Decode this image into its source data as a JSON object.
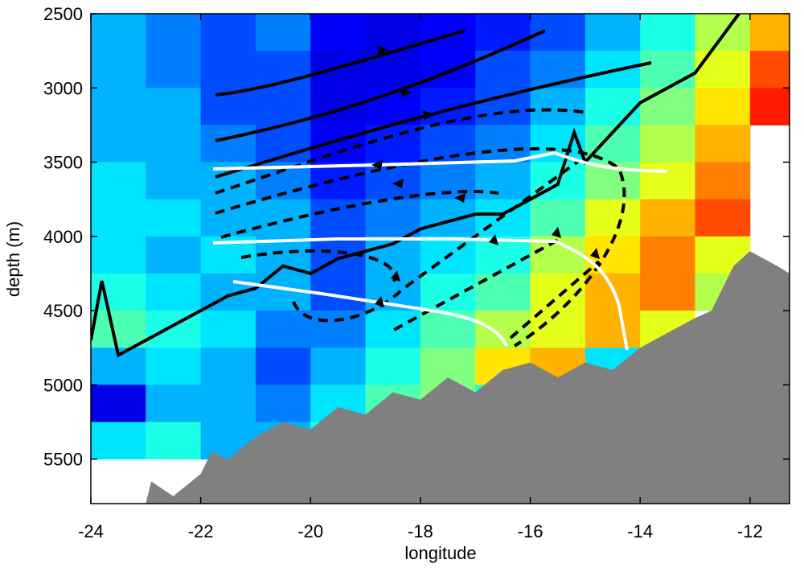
{
  "chart_data": {
    "type": "heatmap",
    "x_label": "longitude",
    "y_label": "depth (m)",
    "xlim": [
      -24,
      -11.28
    ],
    "ylim": [
      2500,
      5800
    ],
    "y_inverted": true,
    "xticks": [
      -24,
      -22,
      -20,
      -18,
      -16,
      -14,
      -12
    ],
    "yticks": [
      2500,
      3000,
      3500,
      4000,
      4500,
      5000,
      5500
    ],
    "colormap": "jet",
    "x_edges": [
      -24,
      -23,
      -22,
      -21,
      -20,
      -19,
      -18,
      -17,
      -16,
      -15,
      -14,
      -13,
      -12,
      -11.28
    ],
    "y_edges": [
      2500,
      2750,
      3000,
      3250,
      3500,
      3750,
      4000,
      4250,
      4500,
      4750,
      5000,
      5250,
      5500,
      5750
    ],
    "z": [
      [
        0.3,
        0.25,
        0.2,
        0.25,
        0.12,
        0.1,
        0.12,
        0.15,
        0.2,
        0.3,
        0.4,
        0.55,
        0.7
      ],
      [
        0.3,
        0.25,
        0.2,
        0.2,
        0.1,
        0.1,
        0.12,
        0.2,
        0.25,
        0.35,
        0.45,
        0.6,
        0.8
      ],
      [
        0.3,
        0.3,
        0.2,
        0.2,
        0.1,
        0.12,
        0.15,
        0.2,
        0.3,
        0.4,
        0.5,
        0.65,
        0.85
      ],
      [
        0.3,
        0.3,
        0.25,
        0.2,
        0.12,
        0.15,
        0.2,
        0.25,
        0.35,
        0.45,
        0.55,
        0.7,
        null
      ],
      [
        0.35,
        0.3,
        0.3,
        0.25,
        0.15,
        0.2,
        0.25,
        0.3,
        0.4,
        0.5,
        0.6,
        0.75,
        null
      ],
      [
        0.35,
        0.35,
        0.3,
        0.3,
        0.2,
        0.25,
        0.3,
        0.35,
        0.45,
        0.6,
        0.7,
        0.8,
        null
      ],
      [
        0.35,
        0.3,
        0.35,
        0.3,
        0.2,
        0.3,
        0.35,
        0.4,
        0.55,
        0.65,
        0.75,
        0.6,
        null
      ],
      [
        0.4,
        0.35,
        0.3,
        0.3,
        0.2,
        0.3,
        0.4,
        0.45,
        0.6,
        0.7,
        0.75,
        0.55,
        null
      ],
      [
        0.45,
        0.4,
        0.35,
        0.25,
        0.25,
        0.35,
        0.45,
        0.55,
        0.6,
        0.7,
        0.6,
        null,
        null
      ],
      [
        0.3,
        0.35,
        0.3,
        0.2,
        0.3,
        0.4,
        0.5,
        0.65,
        0.7,
        0.35,
        null,
        null,
        null
      ],
      [
        0.1,
        0.3,
        0.3,
        0.25,
        0.35,
        0.45,
        0.5,
        0.4,
        null,
        null,
        null,
        null,
        null
      ],
      [
        0.35,
        0.4,
        0.3,
        0.3,
        0.4,
        0.45,
        null,
        null,
        null,
        null,
        null,
        null,
        null
      ],
      [
        null,
        null,
        null,
        null,
        null,
        null,
        null,
        null,
        null,
        null,
        null,
        null,
        null
      ]
    ],
    "bathymetry": {
      "color": "#808080",
      "x": [
        -23.0,
        -22.9,
        -22.5,
        -22.0,
        -21.8,
        -21.5,
        -21.0,
        -20.5,
        -20.0,
        -19.5,
        -19.0,
        -18.5,
        -18.0,
        -17.5,
        -17.0,
        -16.5,
        -16.0,
        -15.5,
        -15.0,
        -14.5,
        -14.0,
        -13.5,
        -13.0,
        -12.7,
        -12.3,
        -12.0,
        -11.5,
        -11.28
      ],
      "y": [
        5800,
        5650,
        5750,
        5600,
        5450,
        5500,
        5350,
        5250,
        5300,
        5150,
        5200,
        5050,
        5100,
        4950,
        5050,
        4900,
        4850,
        4950,
        4850,
        4900,
        4750,
        4650,
        4550,
        4500,
        4200,
        4100,
        4200,
        4250
      ]
    },
    "profile": {
      "color": "#000000",
      "x": [
        -24,
        -23.8,
        -23.5,
        -23,
        -22.5,
        -22,
        -21.5,
        -21,
        -20.5,
        -20,
        -19.5,
        -19,
        -18.5,
        -18,
        -17.5,
        -17,
        -16.5,
        -16,
        -15.5,
        -15.2,
        -15,
        -14.5,
        -14,
        -13.5,
        -13,
        -12.6,
        -12.2
      ],
      "y": [
        4700,
        4300,
        4800,
        4700,
        4600,
        4500,
        4400,
        4350,
        4200,
        4250,
        4150,
        4100,
        4050,
        3950,
        3900,
        3850,
        3850,
        3750,
        3650,
        3300,
        3500,
        3300,
        3100,
        3000,
        2900,
        2700,
        2500
      ]
    }
  }
}
